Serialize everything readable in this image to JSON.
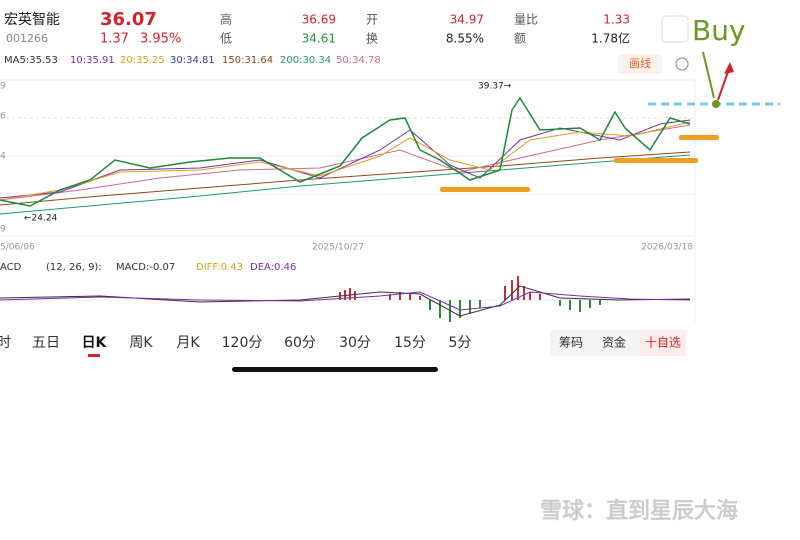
{
  "header": {
    "name": "宏英智能",
    "code": "001266",
    "price": "36.07",
    "change": "1.37",
    "change_pct": "3.95%",
    "high_label": "高",
    "high": "36.69",
    "low_label": "低",
    "low": "34.61",
    "open_label": "开",
    "open": "34.97",
    "turnover_label": "换",
    "turnover": "8.55%",
    "vol_ratio_label": "量比",
    "vol_ratio": "1.33",
    "amount_label": "额",
    "amount": "1.78亿"
  },
  "annotation": "Buy",
  "ma": [
    "MA5:35.53",
    "10:35.91",
    "20:35.25",
    "30:34.81",
    "150:31.64",
    "200:30.34",
    "50:34.78"
  ],
  "draw_button": "画线",
  "axis_labels": [
    "9",
    "6",
    "4",
    "9"
  ],
  "dates": [
    "5/06/06",
    "2025/10/27",
    "2026/03/18"
  ],
  "price_marks": [
    "39.37→",
    "←24.24"
  ],
  "macd": {
    "name": "ACD",
    "params": "(12, 26, 9):",
    "macd": "MACD:-0.07",
    "diff": "DIFF:0.43",
    "dea": "DEA:0.46"
  },
  "tabs": [
    "时",
    "五日",
    "日K",
    "周K",
    "月K",
    "120分",
    "60分",
    "30分",
    "15分",
    "5分"
  ],
  "buttons": [
    "筹码",
    "资金",
    "十自选"
  ],
  "watermark": "雪球：直到星辰大海"
}
